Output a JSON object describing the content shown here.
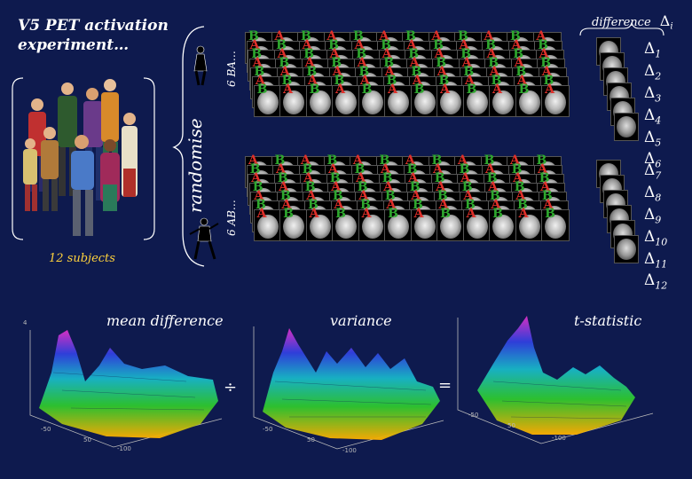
{
  "title_line1": "V5 PET activation",
  "title_line2": "experiment…",
  "subjects_label": "12 subjects",
  "randomise_label": "randomise",
  "condition_order_top": "6 BA…",
  "condition_order_bottom": "6 AB…",
  "condition_letter_B": "B",
  "condition_letter_A": "A",
  "difference_label": "difference",
  "difference_symbol": "Δ",
  "difference_index": "i",
  "deltas_group1": [
    "1",
    "2",
    "3",
    "4",
    "5",
    "6"
  ],
  "deltas_group2": [
    "7",
    "8",
    "9",
    "10",
    "11",
    "12"
  ],
  "plots": {
    "mean_difference": "mean difference",
    "variance": "variance",
    "t_statistic": "t-statistic",
    "divide_operator": "÷",
    "equals_operator": "="
  },
  "colors": {
    "background": "#0e1a4e",
    "subjects_label": "#ffd23c",
    "condition_B": "#2ea82e",
    "condition_A": "#e0302a"
  }
}
